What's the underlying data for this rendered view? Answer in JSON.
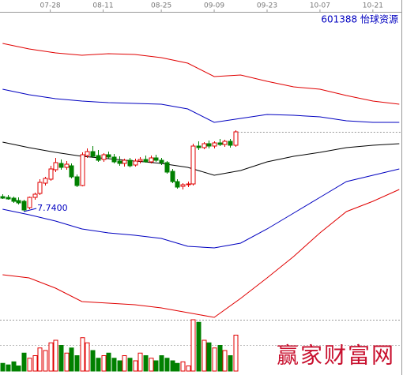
{
  "chart_data": {
    "type": "candlestick",
    "title": "601388 怡球资源",
    "watermark": "赢家财富网",
    "low_label": "7.7400",
    "xlim": [
      -0.5,
      75.7
    ],
    "xticks": [
      {
        "value": 9,
        "label": "07-28"
      },
      {
        "value": 19,
        "label": "08-11"
      },
      {
        "value": 30,
        "label": "08-25"
      },
      {
        "value": 40,
        "label": "09-09"
      },
      {
        "value": 50,
        "label": "09-23"
      },
      {
        "value": 60,
        "label": "10-07"
      },
      {
        "value": 70,
        "label": "10-21"
      }
    ],
    "ylim": [
      5.0,
      12.8
    ],
    "up_color": "#e00000",
    "down_color": "#008000",
    "candles": {
      "x": [
        0,
        1,
        2,
        3,
        4,
        5,
        6,
        7,
        8,
        9,
        10,
        11,
        12,
        13,
        14,
        15,
        16,
        17,
        18,
        19,
        20,
        21,
        22,
        23,
        24,
        25,
        26,
        27,
        28,
        29,
        30,
        31,
        32,
        33,
        34,
        35,
        36,
        37,
        38,
        39,
        40,
        41,
        42,
        43,
        44
      ],
      "open": [
        8.12,
        8.1,
        8.08,
        8.02,
        8.0,
        7.84,
        8.1,
        8.2,
        8.46,
        8.56,
        8.8,
        8.96,
        8.86,
        8.9,
        8.62,
        8.4,
        9.16,
        9.26,
        9.16,
        9.06,
        9.18,
        9.12,
        9.02,
        8.96,
        9.04,
        8.92,
        9.02,
        9.06,
        9.0,
        9.1,
        9.04,
        8.98,
        8.76,
        8.5,
        8.38,
        8.42,
        8.44,
        9.4,
        9.36,
        9.46,
        9.4,
        9.48,
        9.44,
        9.52,
        9.42
      ],
      "high": [
        8.18,
        8.16,
        8.12,
        8.1,
        8.04,
        8.12,
        8.22,
        8.56,
        8.62,
        8.9,
        9.1,
        9.06,
        9.02,
        8.96,
        8.68,
        9.24,
        9.34,
        9.4,
        9.3,
        9.22,
        9.26,
        9.2,
        9.14,
        9.08,
        9.1,
        9.08,
        9.12,
        9.16,
        9.16,
        9.18,
        9.1,
        9.02,
        8.82,
        8.56,
        8.46,
        8.5,
        9.46,
        9.52,
        9.5,
        9.54,
        9.52,
        9.58,
        9.56,
        9.58,
        9.8
      ],
      "low": [
        8.06,
        8.04,
        7.96,
        7.92,
        7.74,
        7.8,
        8.04,
        8.16,
        8.4,
        8.52,
        8.74,
        8.8,
        8.8,
        8.58,
        8.36,
        8.38,
        9.1,
        9.1,
        9.0,
        9.0,
        9.08,
        8.96,
        8.9,
        8.88,
        8.86,
        8.88,
        8.96,
        8.98,
        8.96,
        9.0,
        8.92,
        8.7,
        8.46,
        8.32,
        8.3,
        8.36,
        8.4,
        9.3,
        9.32,
        9.34,
        9.34,
        9.4,
        9.38,
        9.36,
        9.38
      ],
      "close": [
        8.08,
        8.06,
        8.0,
        7.96,
        7.78,
        8.1,
        8.18,
        8.48,
        8.58,
        8.82,
        8.98,
        8.86,
        8.94,
        8.62,
        8.4,
        9.18,
        9.26,
        9.14,
        9.04,
        9.18,
        9.12,
        9.0,
        8.96,
        9.04,
        8.9,
        9.02,
        9.06,
        9.0,
        9.1,
        9.04,
        8.98,
        8.74,
        8.5,
        8.36,
        8.42,
        8.44,
        9.4,
        9.36,
        9.46,
        9.4,
        9.48,
        9.44,
        9.52,
        9.42,
        9.76
      ]
    },
    "bands": {
      "x": [
        0,
        5,
        10,
        15,
        20,
        25,
        30,
        35,
        40,
        45,
        50,
        55,
        60,
        65,
        70,
        75
      ],
      "series": [
        {
          "color": "#e00000",
          "values": [
            12.0,
            11.86,
            11.76,
            11.7,
            11.74,
            11.72,
            11.64,
            11.5,
            11.16,
            11.2,
            11.04,
            10.9,
            10.84,
            10.68,
            10.54,
            10.46
          ]
        },
        {
          "color": "#0000c0",
          "values": [
            10.84,
            10.7,
            10.6,
            10.54,
            10.5,
            10.48,
            10.46,
            10.34,
            10.0,
            10.1,
            10.2,
            10.18,
            10.14,
            10.04,
            10.0,
            10.0
          ]
        },
        {
          "color": "#000000",
          "values": [
            9.5,
            9.36,
            9.24,
            9.14,
            9.08,
            9.02,
            8.96,
            8.86,
            8.66,
            8.78,
            9.0,
            9.14,
            9.24,
            9.36,
            9.42,
            9.46
          ]
        },
        {
          "color": "#0000c0",
          "values": [
            7.8,
            7.66,
            7.5,
            7.3,
            7.2,
            7.14,
            7.06,
            6.86,
            6.82,
            6.94,
            7.3,
            7.7,
            8.1,
            8.5,
            8.66,
            8.82
          ]
        },
        {
          "color": "#e00000",
          "values": [
            6.14,
            6.06,
            5.8,
            5.46,
            5.42,
            5.38,
            5.3,
            5.18,
            5.06,
            5.54,
            6.06,
            6.6,
            7.2,
            7.74,
            8.0,
            8.3
          ]
        }
      ]
    },
    "volume": {
      "ylim": [
        0,
        100
      ],
      "values": [
        15,
        12,
        18,
        10,
        35,
        25,
        30,
        45,
        40,
        55,
        60,
        50,
        35,
        45,
        30,
        65,
        55,
        40,
        25,
        30,
        35,
        25,
        20,
        30,
        25,
        20,
        35,
        30,
        25,
        20,
        30,
        25,
        20,
        15,
        18,
        10,
        100,
        95,
        60,
        55,
        45,
        50,
        40,
        30,
        70
      ]
    }
  }
}
